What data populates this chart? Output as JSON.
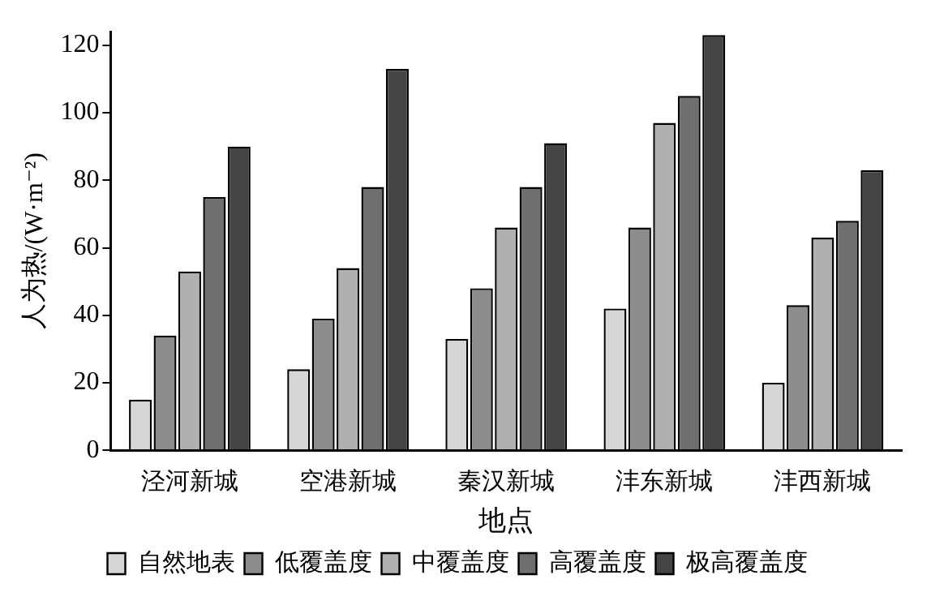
{
  "chart_data": {
    "type": "bar",
    "xlabel": "地点",
    "ylabel": "人为热/(W·m⁻²)",
    "categories": [
      "泾河新城",
      "空港新城",
      "秦汉新城",
      "沣东新城",
      "沣西新城"
    ],
    "series": [
      {
        "name": "自然地表",
        "color": "#d6d6d6",
        "values": [
          15,
          24,
          33,
          42,
          20
        ]
      },
      {
        "name": "低覆盖度",
        "color": "#8c8c8c",
        "values": [
          34,
          39,
          48,
          66,
          43
        ]
      },
      {
        "name": "中覆盖度",
        "color": "#b0b0b0",
        "values": [
          53,
          54,
          66,
          97,
          63
        ]
      },
      {
        "name": "高覆盖度",
        "color": "#6f6f6f",
        "values": [
          75,
          78,
          78,
          105,
          68
        ]
      },
      {
        "name": "极高覆盖度",
        "color": "#444444",
        "values": [
          90,
          113,
          91,
          123,
          83
        ]
      }
    ],
    "ylim": [
      0,
      124
    ],
    "yticks": [
      0,
      20,
      40,
      60,
      80,
      100,
      120
    ],
    "grid": false,
    "legend": "bottom"
  }
}
